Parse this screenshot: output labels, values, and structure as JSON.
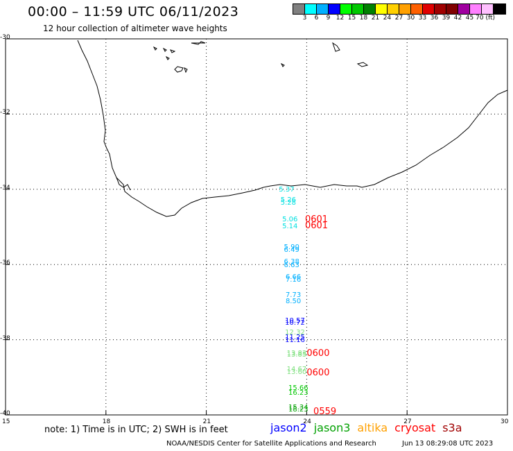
{
  "header": {
    "title": "00:00 – 11:59 UTC 06/11/2023",
    "subtitle": "12 hour collection of altimeter wave heights"
  },
  "colorbar": {
    "colors": [
      "#808080",
      "#00ffff",
      "#00b0ff",
      "#0000ff",
      "#00ff00",
      "#00c800",
      "#008000",
      "#ffff00",
      "#ffd000",
      "#ffa000",
      "#ff6000",
      "#e00000",
      "#a00000",
      "#800000",
      "#a000a0",
      "#ff80ff",
      "#ffc0ff",
      "#000000"
    ],
    "ticks": [
      "3",
      "6",
      "9",
      "12",
      "15",
      "18",
      "21",
      "24",
      "27",
      "30",
      "33",
      "36",
      "39",
      "42",
      "45",
      "70 (ft)"
    ]
  },
  "axes": {
    "lat_labels": [
      "-30",
      "-32",
      "-34",
      "-36",
      "-38",
      "-40"
    ],
    "lon_labels": [
      "15",
      "18",
      "21",
      "24",
      "27",
      "30"
    ]
  },
  "swh_labels": [
    {
      "text": "5.37",
      "lon": 23.4,
      "lat": -34.02,
      "color": "#00e0e0"
    },
    {
      "text": "5.26",
      "lon": 23.45,
      "lat": -34.3,
      "color": "#00e0e0"
    },
    {
      "text": "5.28",
      "lon": 23.45,
      "lat": -34.38,
      "color": "#00e0e0"
    },
    {
      "text": "5.06",
      "lon": 23.5,
      "lat": -34.82,
      "color": "#00e0e0"
    },
    {
      "text": "5.14",
      "lon": 23.5,
      "lat": -35.0,
      "color": "#00e0e0"
    },
    {
      "text": "5.90",
      "lon": 23.55,
      "lat": -35.55,
      "color": "#00b0ff"
    },
    {
      "text": "6.49",
      "lon": 23.55,
      "lat": -35.62,
      "color": "#00b0ff"
    },
    {
      "text": "6.38",
      "lon": 23.55,
      "lat": -35.95,
      "color": "#00b0ff"
    },
    {
      "text": "6.63",
      "lon": 23.55,
      "lat": -36.03,
      "color": "#00b0ff"
    },
    {
      "text": "6.66",
      "lon": 23.6,
      "lat": -36.35,
      "color": "#00b0ff"
    },
    {
      "text": "7.16",
      "lon": 23.6,
      "lat": -36.42,
      "color": "#00b0ff"
    },
    {
      "text": "7.73",
      "lon": 23.6,
      "lat": -36.82,
      "color": "#00b0ff"
    },
    {
      "text": "8.50",
      "lon": 23.6,
      "lat": -37.0,
      "color": "#00b0ff"
    },
    {
      "text": "10.57",
      "lon": 23.65,
      "lat": -37.5,
      "color": "#0000ff"
    },
    {
      "text": "10.72",
      "lon": 23.65,
      "lat": -37.56,
      "color": "#0000ff"
    },
    {
      "text": "12.32",
      "lon": 23.65,
      "lat": -37.82,
      "color": "#80e080"
    },
    {
      "text": "11.25",
      "lon": 23.65,
      "lat": -37.95,
      "color": "#0000ff"
    },
    {
      "text": "11.16",
      "lon": 23.65,
      "lat": -38.02,
      "color": "#0000ff"
    },
    {
      "text": "13.83",
      "lon": 23.7,
      "lat": -38.38,
      "color": "#80e080"
    },
    {
      "text": "13.85",
      "lon": 23.7,
      "lat": -38.42,
      "color": "#80e080"
    },
    {
      "text": "14.67",
      "lon": 23.7,
      "lat": -38.8,
      "color": "#80e080"
    },
    {
      "text": "13.60",
      "lon": 23.7,
      "lat": -38.88,
      "color": "#80e080"
    },
    {
      "text": "15.66",
      "lon": 23.75,
      "lat": -39.3,
      "color": "#00c800"
    },
    {
      "text": "16.23",
      "lon": 23.75,
      "lat": -39.42,
      "color": "#00c800"
    },
    {
      "text": "15.34",
      "lon": 23.75,
      "lat": -39.82,
      "color": "#00a000"
    },
    {
      "text": "18.23",
      "lon": 23.75,
      "lat": -39.88,
      "color": "#00a000"
    }
  ],
  "time_labels": [
    {
      "text": "0601",
      "lon": 23.95,
      "lat": -34.82,
      "color": "#ff0000"
    },
    {
      "text": "0601",
      "lon": 23.95,
      "lat": -34.98,
      "color": "#ff0000"
    },
    {
      "text": "0600",
      "lon": 24.0,
      "lat": -38.38,
      "color": "#ff0000"
    },
    {
      "text": "0600",
      "lon": 24.0,
      "lat": -38.9,
      "color": "#ff0000"
    },
    {
      "text": "0559",
      "lon": 24.2,
      "lat": -39.92,
      "color": "#ff0000"
    }
  ],
  "note": "note: 1) Time is in UTC; 2) SWH is in feet",
  "satellites": [
    {
      "name": "jason2",
      "color": "#0000ff"
    },
    {
      "name": "jason3",
      "color": "#00a000"
    },
    {
      "name": "altika",
      "color": "#ffa000"
    },
    {
      "name": "cryosat",
      "color": "#ff0000"
    },
    {
      "name": "s3a",
      "color": "#a00000"
    }
  ],
  "footer": {
    "credit": "NOAA/NESDIS Center for Satellite Applications and Research",
    "timestamp": "Jun 13 08:29:08 UTC 2023"
  }
}
